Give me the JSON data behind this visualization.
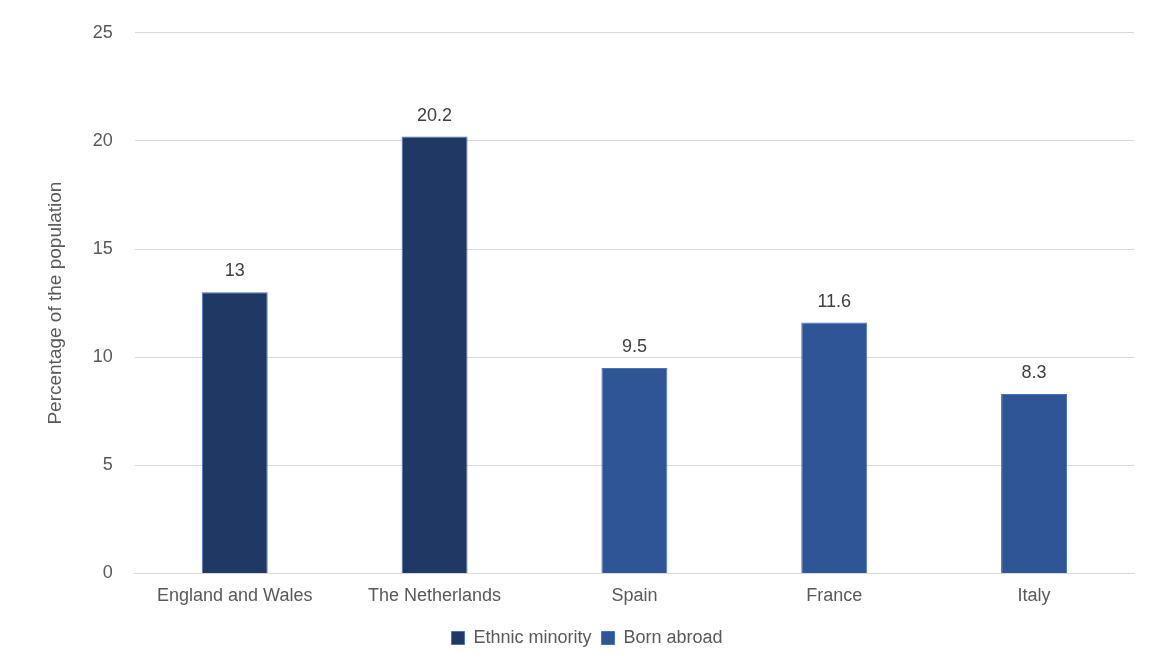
{
  "chart_data": {
    "type": "bar",
    "ylabel": "Percentage of the population",
    "categories": [
      "England and Wales",
      "The Netherlands",
      "Spain",
      "France",
      "Italy"
    ],
    "series": [
      {
        "name": "Ethnic minority",
        "color": "#203864",
        "values": [
          13,
          20.2,
          null,
          null,
          null
        ]
      },
      {
        "name": "Born abroad",
        "color": "#2f5597",
        "values": [
          null,
          null,
          9.5,
          11.6,
          8.3
        ]
      }
    ],
    "ylim": [
      0,
      25
    ],
    "yticks": [
      0,
      5,
      10,
      15,
      20,
      25
    ],
    "grid": "y",
    "legend": "bottom",
    "data_labels": true
  }
}
